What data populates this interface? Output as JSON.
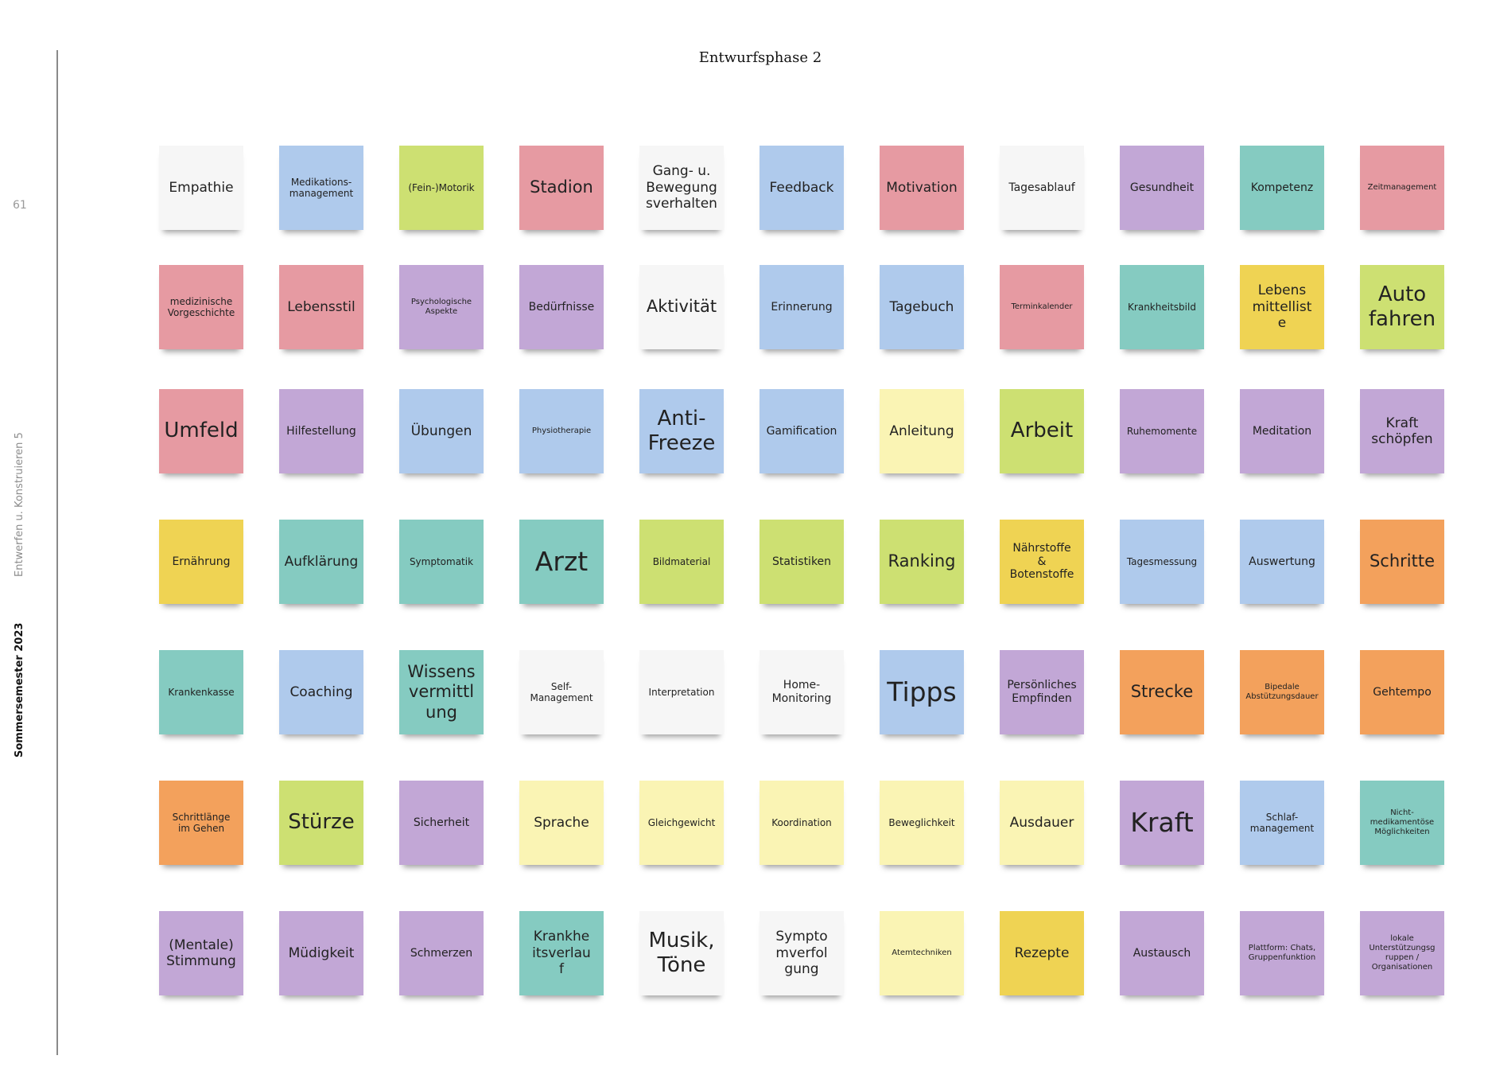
{
  "page": {
    "title": "Entwurfsphase 2",
    "page_number": "61",
    "course": "Entwerfen u. Konstruieren 5",
    "semester": "Sommersemester 2023"
  },
  "colors": {
    "white": "#f6f6f6",
    "blue": "#afcaec",
    "green": "#cde072",
    "red": "#e69aa2",
    "purple": "#c2a7d6",
    "teal": "#85cbc1",
    "yellow": "#efd353",
    "lightyellow": "#faf4b4",
    "orange": "#f3a15c"
  },
  "notes": [
    [
      {
        "text": "Empathie",
        "color": "white",
        "size": "m"
      },
      {
        "text": "Medikations-\nmanagement",
        "color": "blue",
        "size": "xs"
      },
      {
        "text": "(Fein-)Motorik",
        "color": "green",
        "size": "xs"
      },
      {
        "text": "Stadion",
        "color": "red",
        "size": "l"
      },
      {
        "text": "Gang- u.\nBewegung\nsverhalten",
        "color": "white",
        "size": "m"
      },
      {
        "text": "Feedback",
        "color": "blue",
        "size": "m"
      },
      {
        "text": "Motivation",
        "color": "red",
        "size": "m"
      },
      {
        "text": "Tagesablauf",
        "color": "white",
        "size": "s"
      },
      {
        "text": "Gesundheit",
        "color": "purple",
        "size": "s"
      },
      {
        "text": "Kompetenz",
        "color": "teal",
        "size": "s"
      },
      {
        "text": "Zeitmanagement",
        "color": "red",
        "size": "xxs"
      }
    ],
    [
      {
        "text": "medizinische\nVorgeschichte",
        "color": "red",
        "size": "xs"
      },
      {
        "text": "Lebensstil",
        "color": "red",
        "size": "m"
      },
      {
        "text": "Psychologische\nAspekte",
        "color": "purple",
        "size": "xxs"
      },
      {
        "text": "Bedürfnisse",
        "color": "purple",
        "size": "s"
      },
      {
        "text": "Aktivität",
        "color": "white",
        "size": "l"
      },
      {
        "text": "Erinnerung",
        "color": "blue",
        "size": "s"
      },
      {
        "text": "Tagebuch",
        "color": "blue",
        "size": "m"
      },
      {
        "text": "Terminkalender",
        "color": "red",
        "size": "xxs"
      },
      {
        "text": "Krankheitsbild",
        "color": "teal",
        "size": "xs"
      },
      {
        "text": "Lebens\nmittellist\ne",
        "color": "yellow",
        "size": "m"
      },
      {
        "text": "Auto\nfahren",
        "color": "green",
        "size": "xl"
      }
    ],
    [
      {
        "text": "Umfeld",
        "color": "red",
        "size": "xl"
      },
      {
        "text": "Hilfestellung",
        "color": "purple",
        "size": "s"
      },
      {
        "text": "Übungen",
        "color": "blue",
        "size": "m"
      },
      {
        "text": "Physiotherapie",
        "color": "blue",
        "size": "xxs"
      },
      {
        "text": "Anti-\nFreeze",
        "color": "blue",
        "size": "xl"
      },
      {
        "text": "Gamification",
        "color": "blue",
        "size": "s"
      },
      {
        "text": "Anleitung",
        "color": "lightyellow",
        "size": "m"
      },
      {
        "text": "Arbeit",
        "color": "green",
        "size": "xl"
      },
      {
        "text": "Ruhemomente",
        "color": "purple",
        "size": "xs"
      },
      {
        "text": "Meditation",
        "color": "purple",
        "size": "s"
      },
      {
        "text": "Kraft\nschöpfen",
        "color": "purple",
        "size": "m"
      }
    ],
    [
      {
        "text": "Ernährung",
        "color": "yellow",
        "size": "s"
      },
      {
        "text": "Aufklärung",
        "color": "teal",
        "size": "m"
      },
      {
        "text": "Symptomatik",
        "color": "teal",
        "size": "xs"
      },
      {
        "text": "Arzt",
        "color": "teal",
        "size": "xxl"
      },
      {
        "text": "Bildmaterial",
        "color": "green",
        "size": "xs"
      },
      {
        "text": "Statistiken",
        "color": "green",
        "size": "s"
      },
      {
        "text": "Ranking",
        "color": "green",
        "size": "l"
      },
      {
        "text": "Nährstoffe\n&\nBotenstoffe",
        "color": "yellow",
        "size": "s"
      },
      {
        "text": "Tagesmessung",
        "color": "blue",
        "size": "xs"
      },
      {
        "text": "Auswertung",
        "color": "blue",
        "size": "s"
      },
      {
        "text": "Schritte",
        "color": "orange",
        "size": "l"
      }
    ],
    [
      {
        "text": "Krankenkasse",
        "color": "teal",
        "size": "xs"
      },
      {
        "text": "Coaching",
        "color": "blue",
        "size": "m"
      },
      {
        "text": "Wissens\nvermittl\nung",
        "color": "teal",
        "size": "l"
      },
      {
        "text": "Self-\nManagement",
        "color": "white",
        "size": "xs"
      },
      {
        "text": "Interpretation",
        "color": "white",
        "size": "xs"
      },
      {
        "text": "Home-\nMonitoring",
        "color": "white",
        "size": "s"
      },
      {
        "text": "Tipps",
        "color": "blue",
        "size": "xxl"
      },
      {
        "text": "Persönliches\nEmpfinden",
        "color": "purple",
        "size": "s"
      },
      {
        "text": "Strecke",
        "color": "orange",
        "size": "l"
      },
      {
        "text": "Bipedale\nAbstützungsdauer",
        "color": "orange",
        "size": "xxs"
      },
      {
        "text": "Gehtempo",
        "color": "orange",
        "size": "s"
      }
    ],
    [
      {
        "text": "Schrittlänge\nim Gehen",
        "color": "orange",
        "size": "xs"
      },
      {
        "text": "Stürze",
        "color": "green",
        "size": "xl"
      },
      {
        "text": "Sicherheit",
        "color": "purple",
        "size": "s"
      },
      {
        "text": "Sprache",
        "color": "lightyellow",
        "size": "m"
      },
      {
        "text": "Gleichgewicht",
        "color": "lightyellow",
        "size": "xs"
      },
      {
        "text": "Koordination",
        "color": "lightyellow",
        "size": "xs"
      },
      {
        "text": "Beweglichkeit",
        "color": "lightyellow",
        "size": "xs"
      },
      {
        "text": "Ausdauer",
        "color": "lightyellow",
        "size": "m"
      },
      {
        "text": "Kraft",
        "color": "purple",
        "size": "xxl"
      },
      {
        "text": "Schlaf-\nmanagement",
        "color": "blue",
        "size": "xs"
      },
      {
        "text": "Nicht-\nmedikamentöse\nMöglichkeiten",
        "color": "teal",
        "size": "xxs"
      }
    ],
    [
      {
        "text": "(Mentale)\nStimmung",
        "color": "purple",
        "size": "m"
      },
      {
        "text": "Müdigkeit",
        "color": "purple",
        "size": "m"
      },
      {
        "text": "Schmerzen",
        "color": "purple",
        "size": "s"
      },
      {
        "text": "Krankhe\nitsverlau\nf",
        "color": "teal",
        "size": "m"
      },
      {
        "text": "Musik,\nTöne",
        "color": "white",
        "size": "xl"
      },
      {
        "text": "Sympto\nmverfol\ngung",
        "color": "white",
        "size": "m"
      },
      {
        "text": "Atemtechniken",
        "color": "lightyellow",
        "size": "xxs"
      },
      {
        "text": "Rezepte",
        "color": "yellow",
        "size": "m"
      },
      {
        "text": "Austausch",
        "color": "purple",
        "size": "s"
      },
      {
        "text": "Plattform: Chats,\nGruppenfunktion",
        "color": "purple",
        "size": "xxs"
      },
      {
        "text": "lokale\nUnterstützungsg\nruppen /\nOrganisationen",
        "color": "purple",
        "size": "xxs"
      }
    ]
  ]
}
